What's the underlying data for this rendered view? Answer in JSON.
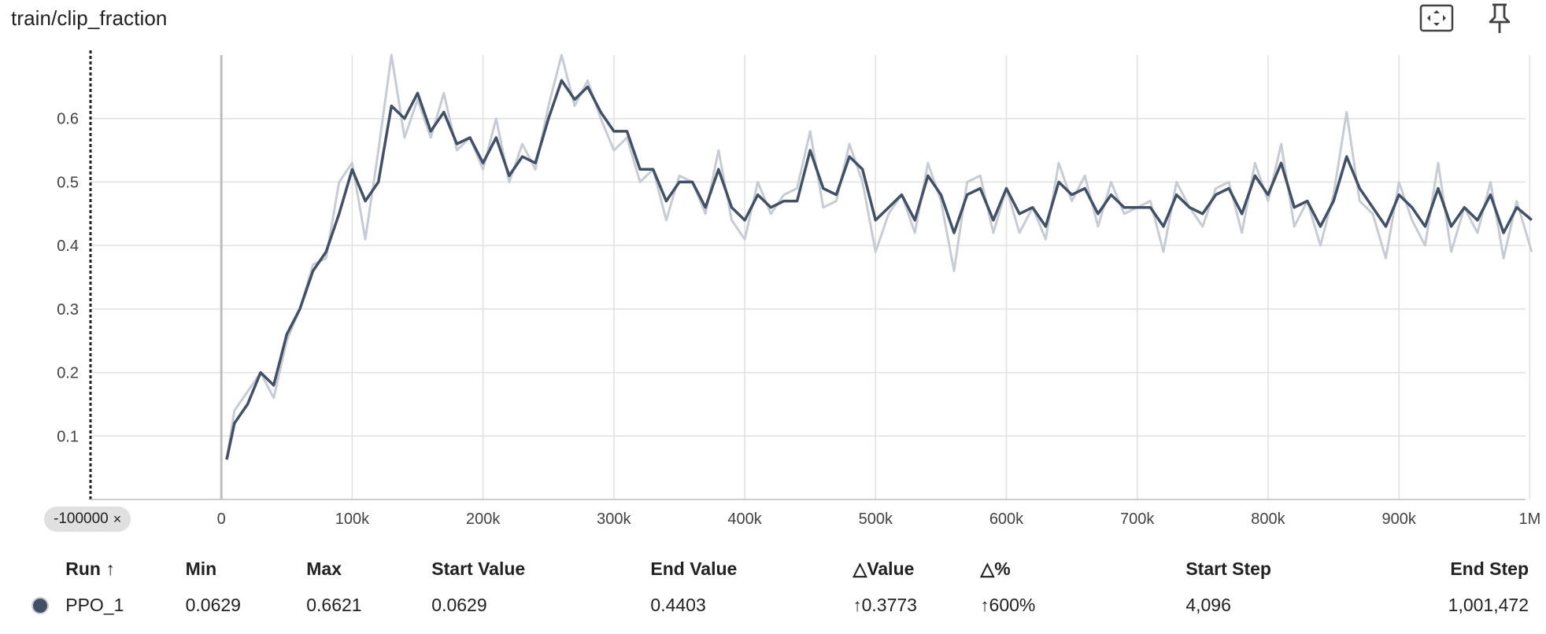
{
  "header": {
    "title": "train/clip_fraction",
    "fit_icon": "fit-to-screen-icon",
    "pin_icon": "pin-icon"
  },
  "colors": {
    "raw_series": "#c7ccd4",
    "smoothed_series": "#425066",
    "grid": "#e0e0e0"
  },
  "range_chip": {
    "label": "-100000",
    "close": "×"
  },
  "chart_data": {
    "type": "line",
    "title": "train/clip_fraction",
    "xlabel": "",
    "ylabel": "",
    "xlim": [
      -100000,
      1010000
    ],
    "ylim": [
      0,
      0.7
    ],
    "grid": true,
    "x_ticks": [
      {
        "v": 0,
        "label": "0"
      },
      {
        "v": 100000,
        "label": "100k"
      },
      {
        "v": 200000,
        "label": "200k"
      },
      {
        "v": 300000,
        "label": "300k"
      },
      {
        "v": 400000,
        "label": "400k"
      },
      {
        "v": 500000,
        "label": "500k"
      },
      {
        "v": 600000,
        "label": "600k"
      },
      {
        "v": 700000,
        "label": "700k"
      },
      {
        "v": 800000,
        "label": "800k"
      },
      {
        "v": 900000,
        "label": "900k"
      },
      {
        "v": 1000000,
        "label": "1M"
      }
    ],
    "y_ticks": [
      {
        "v": 0.1,
        "label": "0.1"
      },
      {
        "v": 0.2,
        "label": "0.2"
      },
      {
        "v": 0.3,
        "label": "0.3"
      },
      {
        "v": 0.4,
        "label": "0.4"
      },
      {
        "v": 0.5,
        "label": "0.5"
      },
      {
        "v": 0.6,
        "label": "0.6"
      }
    ],
    "series": [
      {
        "name": "PPO_1",
        "x": [
          4096,
          10000,
          20000,
          30000,
          40000,
          50000,
          60000,
          70000,
          80000,
          90000,
          100000,
          110000,
          120000,
          130000,
          140000,
          150000,
          160000,
          170000,
          180000,
          190000,
          200000,
          210000,
          220000,
          230000,
          240000,
          250000,
          260000,
          270000,
          280000,
          290000,
          300000,
          310000,
          320000,
          330000,
          340000,
          350000,
          360000,
          370000,
          380000,
          390000,
          400000,
          410000,
          420000,
          430000,
          440000,
          450000,
          460000,
          470000,
          480000,
          490000,
          500000,
          510000,
          520000,
          530000,
          540000,
          550000,
          560000,
          570000,
          580000,
          590000,
          600000,
          610000,
          620000,
          630000,
          640000,
          650000,
          660000,
          670000,
          680000,
          690000,
          700000,
          710000,
          720000,
          730000,
          740000,
          750000,
          760000,
          770000,
          780000,
          790000,
          800000,
          810000,
          820000,
          830000,
          840000,
          850000,
          860000,
          870000,
          880000,
          890000,
          900000,
          910000,
          920000,
          930000,
          940000,
          950000,
          960000,
          970000,
          980000,
          990000,
          1001472
        ],
        "raw": [
          0.0629,
          0.14,
          0.17,
          0.2,
          0.16,
          0.25,
          0.3,
          0.37,
          0.38,
          0.5,
          0.53,
          0.41,
          0.55,
          0.7,
          0.57,
          0.63,
          0.57,
          0.64,
          0.55,
          0.57,
          0.52,
          0.6,
          0.5,
          0.56,
          0.52,
          0.62,
          0.7,
          0.62,
          0.66,
          0.6,
          0.55,
          0.57,
          0.5,
          0.52,
          0.44,
          0.51,
          0.5,
          0.45,
          0.55,
          0.44,
          0.41,
          0.5,
          0.45,
          0.48,
          0.49,
          0.58,
          0.46,
          0.47,
          0.56,
          0.5,
          0.39,
          0.45,
          0.48,
          0.42,
          0.53,
          0.47,
          0.36,
          0.5,
          0.51,
          0.42,
          0.49,
          0.42,
          0.46,
          0.41,
          0.53,
          0.47,
          0.51,
          0.43,
          0.5,
          0.45,
          0.46,
          0.47,
          0.39,
          0.5,
          0.46,
          0.43,
          0.49,
          0.5,
          0.42,
          0.53,
          0.47,
          0.56,
          0.43,
          0.47,
          0.4,
          0.48,
          0.61,
          0.47,
          0.45,
          0.38,
          0.5,
          0.44,
          0.4,
          0.53,
          0.39,
          0.46,
          0.42,
          0.5,
          0.38,
          0.47,
          0.39
        ],
        "smoothed": [
          0.0629,
          0.12,
          0.15,
          0.2,
          0.18,
          0.26,
          0.3,
          0.36,
          0.39,
          0.45,
          0.52,
          0.47,
          0.5,
          0.62,
          0.6,
          0.64,
          0.58,
          0.61,
          0.56,
          0.57,
          0.53,
          0.57,
          0.51,
          0.54,
          0.53,
          0.6,
          0.66,
          0.63,
          0.65,
          0.61,
          0.58,
          0.58,
          0.52,
          0.52,
          0.47,
          0.5,
          0.5,
          0.46,
          0.52,
          0.46,
          0.44,
          0.48,
          0.46,
          0.47,
          0.47,
          0.55,
          0.49,
          0.48,
          0.54,
          0.52,
          0.44,
          0.46,
          0.48,
          0.44,
          0.51,
          0.48,
          0.42,
          0.48,
          0.49,
          0.44,
          0.49,
          0.45,
          0.46,
          0.43,
          0.5,
          0.48,
          0.49,
          0.45,
          0.48,
          0.46,
          0.46,
          0.46,
          0.43,
          0.48,
          0.46,
          0.45,
          0.48,
          0.49,
          0.45,
          0.51,
          0.48,
          0.53,
          0.46,
          0.47,
          0.43,
          0.47,
          0.54,
          0.49,
          0.46,
          0.43,
          0.48,
          0.46,
          0.43,
          0.49,
          0.43,
          0.46,
          0.44,
          0.48,
          0.42,
          0.46,
          0.4403
        ]
      }
    ]
  },
  "table": {
    "headers": {
      "run": "Run ↑",
      "min": "Min",
      "max": "Max",
      "start_value": "Start Value",
      "end_value": "End Value",
      "delta_value": "△Value",
      "delta_pct": "△%",
      "start_step": "Start Step",
      "end_step": "End Step"
    },
    "rows": [
      {
        "run": "PPO_1",
        "min": "0.0629",
        "max": "0.6621",
        "start_value": "0.0629",
        "end_value": "0.4403",
        "delta_arrow": "↑",
        "delta_value": "0.3773",
        "pct_arrow": "↑",
        "delta_pct": "600%",
        "start_step": "4,096",
        "end_step": "1,001,472"
      }
    ]
  }
}
